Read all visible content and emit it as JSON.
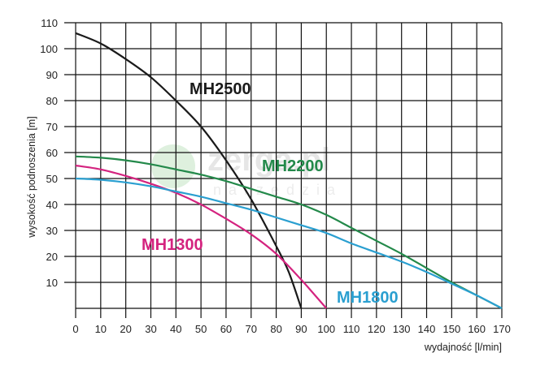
{
  "chart_data": {
    "type": "line",
    "title": "",
    "xlabel": "wydajność [l/min]",
    "ylabel": "wysokość podnoszenia [m]",
    "xlim": [
      0,
      170
    ],
    "ylim": [
      0,
      110
    ],
    "x_ticks": [
      "0",
      "10",
      "20",
      "30",
      "40",
      "50",
      "60",
      "70",
      "80",
      "90",
      "100",
      "110",
      "120",
      "130",
      "140",
      "150",
      "160",
      "170"
    ],
    "y_ticks": [
      "10",
      "20",
      "30",
      "40",
      "50",
      "60",
      "70",
      "80",
      "90",
      "100",
      "110"
    ],
    "grid": true,
    "legend": "inline labels",
    "watermark": "zerga.pl narzędzia",
    "series": [
      {
        "name": "MH2500",
        "color": "#1a1a1a",
        "x": [
          0,
          10,
          20,
          30,
          40,
          50,
          60,
          70,
          80,
          85,
          90
        ],
        "y": [
          106,
          102,
          96,
          89,
          80,
          70,
          57,
          42,
          24,
          14,
          0
        ]
      },
      {
        "name": "MH2200",
        "color": "#23894a",
        "x": [
          0,
          10,
          20,
          30,
          40,
          50,
          60,
          70,
          80,
          90,
          100,
          110,
          120,
          130,
          140,
          150,
          160,
          170
        ],
        "y": [
          58.5,
          58,
          57,
          55.5,
          53.5,
          51.5,
          49,
          46,
          43,
          40,
          36,
          31,
          26,
          21,
          15.5,
          10,
          5,
          0
        ]
      },
      {
        "name": "MH1300",
        "color": "#d4237f",
        "x": [
          0,
          10,
          20,
          30,
          40,
          50,
          60,
          70,
          80,
          90,
          100
        ],
        "y": [
          55,
          53.5,
          51,
          48,
          44.5,
          40,
          34.5,
          28.5,
          21,
          11,
          0
        ]
      },
      {
        "name": "MH1800",
        "color": "#2a9fd0",
        "x": [
          0,
          10,
          20,
          30,
          40,
          50,
          60,
          70,
          80,
          90,
          100,
          110,
          120,
          130,
          140,
          150,
          160,
          170
        ],
        "y": [
          50,
          49.5,
          48.5,
          47,
          45,
          43,
          40.5,
          38,
          35,
          32,
          29,
          25,
          21.5,
          18,
          14,
          9.5,
          5,
          0
        ]
      }
    ]
  }
}
